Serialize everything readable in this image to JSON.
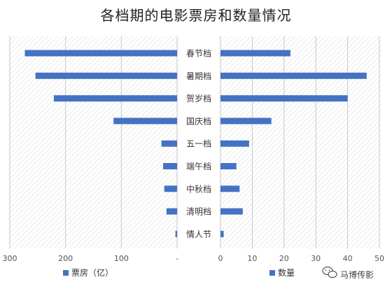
{
  "chart_data": {
    "type": "bar",
    "orientation": "horizontal-butterfly",
    "title": "各档期的电影票房和数量情况",
    "categories": [
      "春节档",
      "暑期档",
      "贺岁档",
      "国庆档",
      "五一档",
      "端午档",
      "中秋档",
      "清明档",
      "情人节"
    ],
    "series": [
      {
        "name": "票房（亿）",
        "values": [
          273,
          254,
          221,
          114,
          28,
          25,
          23,
          19,
          3
        ],
        "axis_ticks": [
          "300",
          "200",
          "100",
          "-"
        ],
        "xlim": [
          300,
          0
        ],
        "direction": "left"
      },
      {
        "name": "数量",
        "values": [
          22,
          46,
          40,
          16,
          9,
          5,
          6,
          7,
          1
        ],
        "axis_ticks": [
          "0",
          "10",
          "20",
          "30",
          "40",
          "50"
        ],
        "xlim": [
          0,
          50
        ],
        "direction": "right"
      }
    ],
    "bar_color": "#4472c4",
    "background_pattern": "diagonal-hatch",
    "grid": true,
    "legend_position": "bottom"
  },
  "watermark": {
    "icon": "wechat-icon",
    "text": "马博传影"
  }
}
